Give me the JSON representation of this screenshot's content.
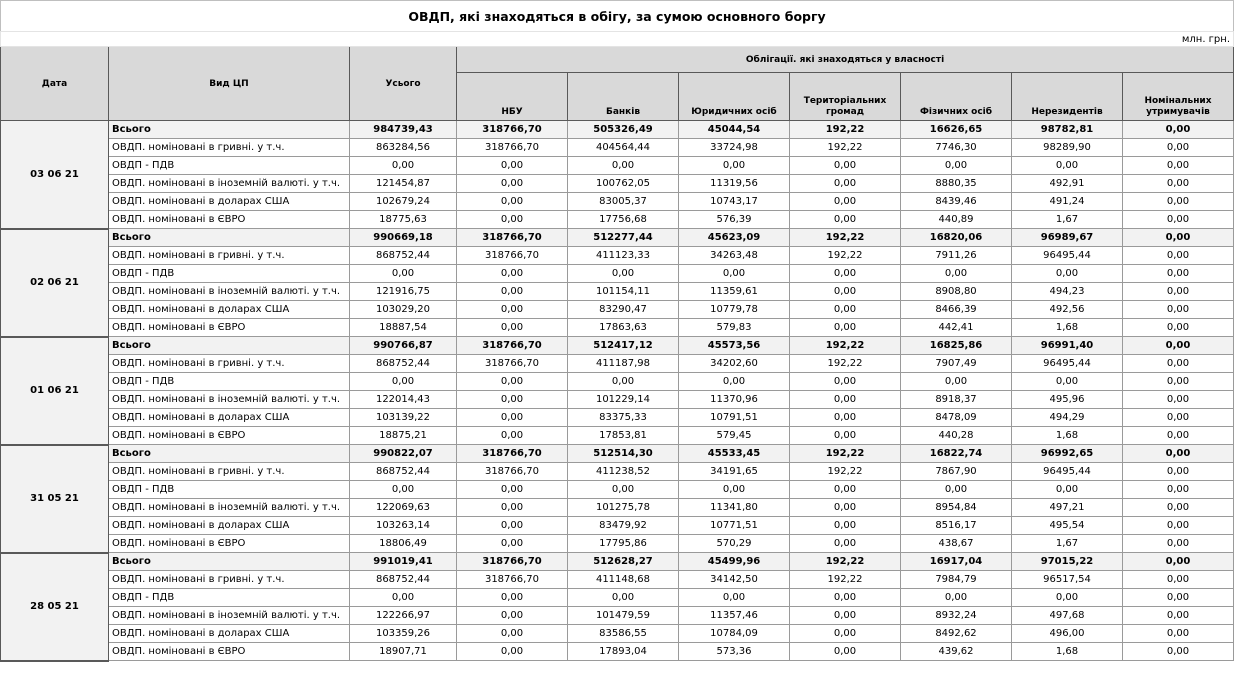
{
  "title": "ОВДП, які знаходяться в обігу, за сумою основного боргу",
  "unit": "млн. грн.",
  "header": {
    "date": "Дата",
    "type": "Вид ЦП",
    "total": "Усього",
    "group": "Облігації. які знаходяться у власності",
    "columns": [
      "НБУ",
      "Банків",
      "Юридичних осіб",
      "Територіальних громад",
      "Фізичних осіб",
      "Нерезидентів",
      "Номінальних утримувачів"
    ]
  },
  "groups": [
    {
      "date": "03 06 21",
      "rows": [
        [
          "Всього",
          "984739,43",
          "318766,70",
          "505326,49",
          "45044,54",
          "192,22",
          "16626,65",
          "98782,81",
          "0,00"
        ],
        [
          "ОВДП. номіновані в гривні. у т.ч.",
          "863284,56",
          "318766,70",
          "404564,44",
          "33724,98",
          "192,22",
          "7746,30",
          "98289,90",
          "0,00"
        ],
        [
          "ОВДП - ПДВ",
          "0,00",
          "0,00",
          "0,00",
          "0,00",
          "0,00",
          "0,00",
          "0,00",
          "0,00"
        ],
        [
          "ОВДП. номіновані в іноземній валюті. у т.ч.",
          "121454,87",
          "0,00",
          "100762,05",
          "11319,56",
          "0,00",
          "8880,35",
          "492,91",
          "0,00"
        ],
        [
          "ОВДП. номіновані в доларах США",
          "102679,24",
          "0,00",
          "83005,37",
          "10743,17",
          "0,00",
          "8439,46",
          "491,24",
          "0,00"
        ],
        [
          "ОВДП. номіновані в ЄВРО",
          "18775,63",
          "0,00",
          "17756,68",
          "576,39",
          "0,00",
          "440,89",
          "1,67",
          "0,00"
        ]
      ]
    },
    {
      "date": "02 06 21",
      "rows": [
        [
          "Всього",
          "990669,18",
          "318766,70",
          "512277,44",
          "45623,09",
          "192,22",
          "16820,06",
          "96989,67",
          "0,00"
        ],
        [
          "ОВДП. номіновані в гривні. у т.ч.",
          "868752,44",
          "318766,70",
          "411123,33",
          "34263,48",
          "192,22",
          "7911,26",
          "96495,44",
          "0,00"
        ],
        [
          "ОВДП - ПДВ",
          "0,00",
          "0,00",
          "0,00",
          "0,00",
          "0,00",
          "0,00",
          "0,00",
          "0,00"
        ],
        [
          "ОВДП. номіновані в іноземній валюті. у т.ч.",
          "121916,75",
          "0,00",
          "101154,11",
          "11359,61",
          "0,00",
          "8908,80",
          "494,23",
          "0,00"
        ],
        [
          "ОВДП. номіновані в доларах США",
          "103029,20",
          "0,00",
          "83290,47",
          "10779,78",
          "0,00",
          "8466,39",
          "492,56",
          "0,00"
        ],
        [
          "ОВДП. номіновані в ЄВРО",
          "18887,54",
          "0,00",
          "17863,63",
          "579,83",
          "0,00",
          "442,41",
          "1,68",
          "0,00"
        ]
      ]
    },
    {
      "date": "01 06 21",
      "rows": [
        [
          "Всього",
          "990766,87",
          "318766,70",
          "512417,12",
          "45573,56",
          "192,22",
          "16825,86",
          "96991,40",
          "0,00"
        ],
        [
          "ОВДП. номіновані в гривні. у т.ч.",
          "868752,44",
          "318766,70",
          "411187,98",
          "34202,60",
          "192,22",
          "7907,49",
          "96495,44",
          "0,00"
        ],
        [
          "ОВДП - ПДВ",
          "0,00",
          "0,00",
          "0,00",
          "0,00",
          "0,00",
          "0,00",
          "0,00",
          "0,00"
        ],
        [
          "ОВДП. номіновані в іноземній валюті. у т.ч.",
          "122014,43",
          "0,00",
          "101229,14",
          "11370,96",
          "0,00",
          "8918,37",
          "495,96",
          "0,00"
        ],
        [
          "ОВДП. номіновані в доларах США",
          "103139,22",
          "0,00",
          "83375,33",
          "10791,51",
          "0,00",
          "8478,09",
          "494,29",
          "0,00"
        ],
        [
          "ОВДП. номіновані в ЄВРО",
          "18875,21",
          "0,00",
          "17853,81",
          "579,45",
          "0,00",
          "440,28",
          "1,68",
          "0,00"
        ]
      ]
    },
    {
      "date": "31 05 21",
      "rows": [
        [
          "Всього",
          "990822,07",
          "318766,70",
          "512514,30",
          "45533,45",
          "192,22",
          "16822,74",
          "96992,65",
          "0,00"
        ],
        [
          "ОВДП. номіновані в гривні. у т.ч.",
          "868752,44",
          "318766,70",
          "411238,52",
          "34191,65",
          "192,22",
          "7867,90",
          "96495,44",
          "0,00"
        ],
        [
          "ОВДП - ПДВ",
          "0,00",
          "0,00",
          "0,00",
          "0,00",
          "0,00",
          "0,00",
          "0,00",
          "0,00"
        ],
        [
          "ОВДП. номіновані в іноземній валюті. у т.ч.",
          "122069,63",
          "0,00",
          "101275,78",
          "11341,80",
          "0,00",
          "8954,84",
          "497,21",
          "0,00"
        ],
        [
          "ОВДП. номіновані в доларах США",
          "103263,14",
          "0,00",
          "83479,92",
          "10771,51",
          "0,00",
          "8516,17",
          "495,54",
          "0,00"
        ],
        [
          "ОВДП. номіновані в ЄВРО",
          "18806,49",
          "0,00",
          "17795,86",
          "570,29",
          "0,00",
          "438,67",
          "1,67",
          "0,00"
        ]
      ]
    },
    {
      "date": "28 05 21",
      "rows": [
        [
          "Всього",
          "991019,41",
          "318766,70",
          "512628,27",
          "45499,96",
          "192,22",
          "16917,04",
          "97015,22",
          "0,00"
        ],
        [
          "ОВДП. номіновані в гривні. у т.ч.",
          "868752,44",
          "318766,70",
          "411148,68",
          "34142,50",
          "192,22",
          "7984,79",
          "96517,54",
          "0,00"
        ],
        [
          "ОВДП - ПДВ",
          "0,00",
          "0,00",
          "0,00",
          "0,00",
          "0,00",
          "0,00",
          "0,00",
          "0,00"
        ],
        [
          "ОВДП. номіновані в іноземній валюті. у т.ч.",
          "122266,97",
          "0,00",
          "101479,59",
          "11357,46",
          "0,00",
          "8932,24",
          "497,68",
          "0,00"
        ],
        [
          "ОВДП. номіновані в доларах США",
          "103359,26",
          "0,00",
          "83586,55",
          "10784,09",
          "0,00",
          "8492,62",
          "496,00",
          "0,00"
        ],
        [
          "ОВДП. номіновані в ЄВРО",
          "18907,71",
          "0,00",
          "17893,04",
          "573,36",
          "0,00",
          "439,62",
          "1,68",
          "0,00"
        ]
      ]
    }
  ]
}
